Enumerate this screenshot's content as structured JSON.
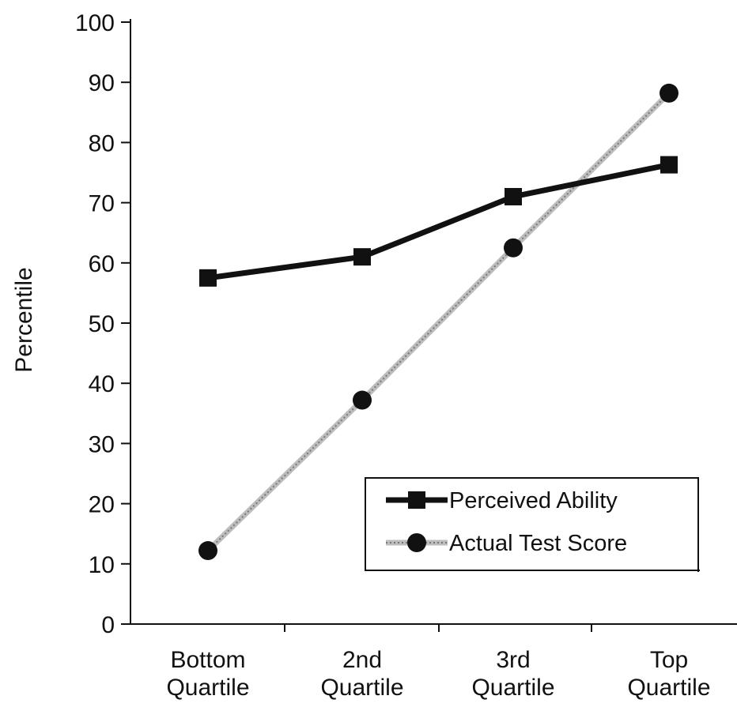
{
  "chart_data": {
    "type": "line",
    "categories": [
      [
        "Bottom",
        "Quartile"
      ],
      [
        "2nd",
        "Quartile"
      ],
      [
        "3rd",
        "Quartile"
      ],
      [
        "Top",
        "Quartile"
      ]
    ],
    "series": [
      {
        "name": "Perceived Ability",
        "values": [
          57.5,
          61,
          71,
          76.3
        ],
        "marker": "square",
        "color": "#111111",
        "style": "solid"
      },
      {
        "name": "Actual Test Score",
        "values": [
          12.2,
          37.2,
          62.5,
          88.2
        ],
        "marker": "circle",
        "color": "#b8b8b8",
        "style": "dotted"
      }
    ],
    "ylabel": "Percentile",
    "xlabel": "",
    "ylim": [
      0,
      100
    ],
    "yticks": [
      0,
      10,
      20,
      30,
      40,
      50,
      60,
      70,
      80,
      90,
      100
    ],
    "grid": false,
    "legend_position": "bottom-right"
  }
}
